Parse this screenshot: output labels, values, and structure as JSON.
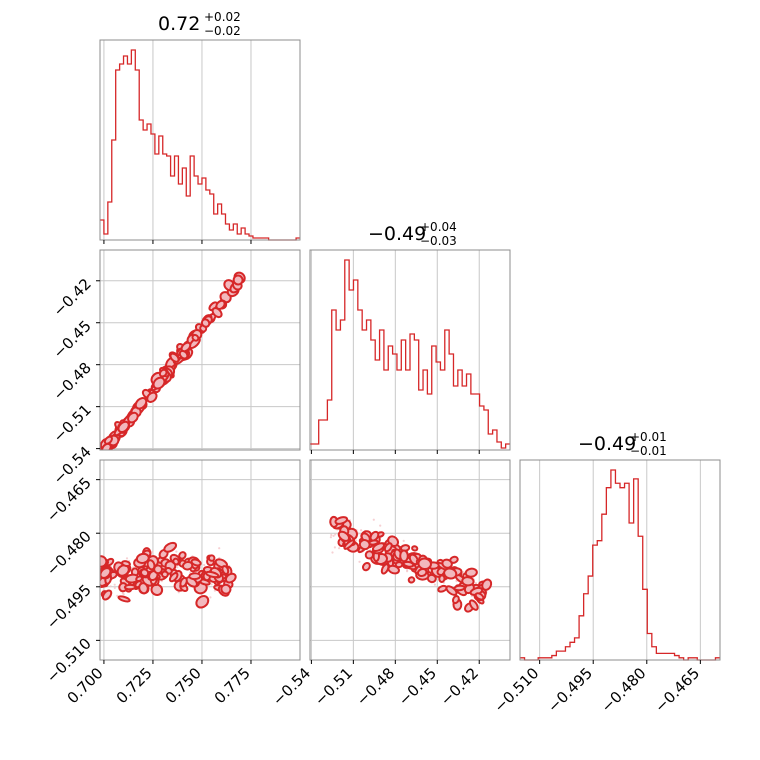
{
  "chart_data": {
    "type": "corner",
    "color": "#d62728",
    "fill_color": "#f2b8bd",
    "grid": true,
    "variables": [
      {
        "title": {
          "main": "0.72",
          "plus": "+0.02",
          "minus": "−0.02"
        },
        "range": [
          0.698,
          0.8
        ],
        "ticks": [
          0.7,
          0.725,
          0.75,
          0.775
        ],
        "tick_labels": [
          "0.700",
          "0.725",
          "0.750",
          "0.775"
        ],
        "hist": {
          "counts": [
            10,
            3,
            19,
            50,
            85,
            88,
            92,
            88,
            95,
            85,
            60,
            55,
            58,
            53,
            43,
            52,
            43,
            42,
            32,
            42,
            28,
            36,
            22,
            42,
            32,
            28,
            31,
            25,
            23,
            13,
            18,
            13,
            8,
            5,
            8,
            3,
            6,
            3,
            2,
            1,
            1,
            1,
            1,
            0,
            0,
            0,
            0,
            0,
            0,
            0,
            1
          ]
        }
      },
      {
        "title": {
          "main": "−0.49",
          "plus": "+0.04",
          "minus": "−0.03"
        },
        "range": [
          -0.541,
          -0.398
        ],
        "ticks": [
          -0.54,
          -0.51,
          -0.48,
          -0.45,
          -0.42
        ],
        "tick_labels": [
          "−0.54",
          "−0.51",
          "−0.48",
          "−0.45",
          "−0.42"
        ],
        "hist": {
          "counts": [
            3,
            3,
            15,
            15,
            25,
            70,
            60,
            65,
            95,
            80,
            85,
            70,
            60,
            65,
            55,
            45,
            60,
            40,
            52,
            48,
            40,
            55,
            40,
            58,
            55,
            30,
            40,
            28,
            52,
            44,
            40,
            60,
            48,
            32,
            40,
            32,
            38,
            28,
            28,
            22,
            20,
            8,
            10,
            4,
            1,
            3
          ]
        }
      },
      {
        "title": {
          "main": "−0.49",
          "plus": "+0.01",
          "minus": "−0.01"
        },
        "range": [
          -0.5155,
          -0.4595
        ],
        "ticks": [
          -0.51,
          -0.495,
          -0.48,
          -0.465
        ],
        "tick_labels": [
          "−0.510",
          "−0.495",
          "−0.480",
          "−0.465"
        ],
        "hist": {
          "counts": [
            1,
            0,
            0,
            0,
            1,
            1,
            1,
            2,
            4,
            4,
            6,
            8,
            10,
            20,
            30,
            38,
            52,
            54,
            66,
            78,
            86,
            80,
            78,
            80,
            62,
            82,
            56,
            32,
            12,
            6,
            3,
            3,
            3,
            3,
            2,
            1,
            0,
            1,
            1,
            0,
            0,
            0,
            0,
            1
          ]
        }
      }
    ]
  }
}
